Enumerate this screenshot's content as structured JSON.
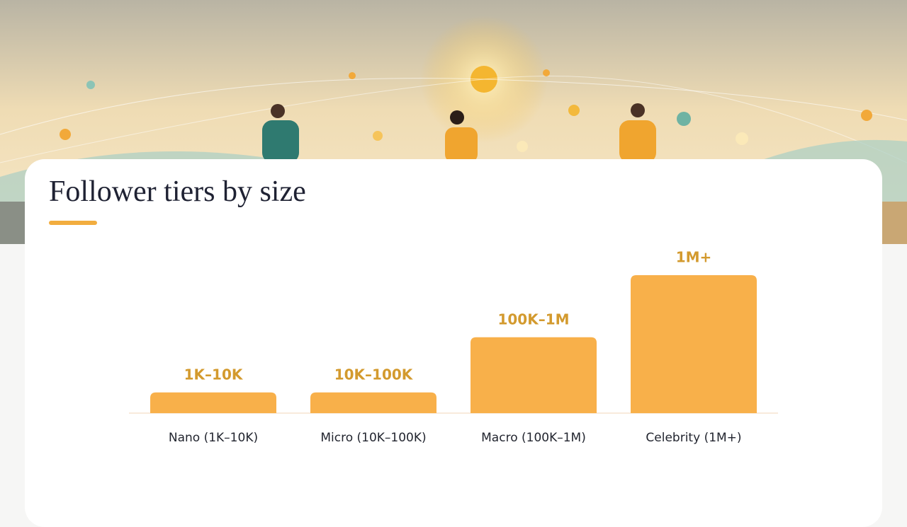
{
  "title": "Follower tiers by size",
  "chart_data": {
    "type": "bar",
    "categories": [
      "Nano (1K–10K)",
      "Micro (10K–100K)",
      "Macro (100K–1M)",
      "Celebrity (1M+)"
    ],
    "values": [
      15,
      15,
      55,
      100
    ],
    "bar_labels": [
      "1K–10K",
      "10K–100K",
      "100K–1M",
      "1M+"
    ],
    "ylim": [
      0,
      100
    ],
    "color": "#f8b04a"
  }
}
